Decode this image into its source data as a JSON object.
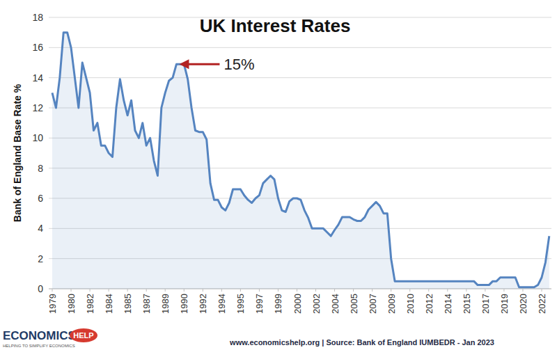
{
  "chart_data": {
    "type": "line",
    "title": "UK Interest Rates",
    "y_label": "Bank of England Base Rate %",
    "annotations": [
      {
        "text": "15%"
      }
    ],
    "categories": [
      "1979",
      null,
      null,
      null,
      null,
      "1980",
      null,
      null,
      null,
      null,
      "1982",
      null,
      null,
      null,
      null,
      "1984",
      null,
      null,
      null,
      null,
      "1985",
      null,
      null,
      null,
      null,
      "1987",
      null,
      null,
      null,
      null,
      "1989",
      null,
      null,
      null,
      null,
      "1990",
      null,
      null,
      null,
      null,
      "1992",
      null,
      null,
      null,
      null,
      "1994",
      null,
      null,
      null,
      null,
      "1995",
      null,
      null,
      null,
      null,
      "1997",
      null,
      null,
      null,
      null,
      "1999",
      null,
      null,
      null,
      null,
      "2000",
      null,
      null,
      null,
      null,
      "2002",
      null,
      null,
      null,
      null,
      "2004",
      null,
      null,
      null,
      null,
      "2005",
      null,
      null,
      null,
      null,
      "2007",
      null,
      null,
      null,
      null,
      "2009",
      null,
      null,
      null,
      null,
      "2010",
      null,
      null,
      null,
      null,
      "2012",
      null,
      null,
      null,
      null,
      "2014",
      null,
      null,
      null,
      null,
      "2015",
      null,
      null,
      null,
      null,
      "2017",
      null,
      null,
      null,
      null,
      "2019",
      null,
      null,
      null,
      null,
      "2020",
      null,
      null,
      null,
      null,
      "2022",
      null,
      null
    ],
    "values": [
      13,
      12,
      14,
      17,
      17,
      16,
      14,
      12,
      15,
      14,
      13,
      10.5,
      11,
      9.5,
      9.5,
      9,
      8.75,
      12,
      13.9,
      12.5,
      11.5,
      12.5,
      10.5,
      10,
      11,
      9.5,
      10,
      8.5,
      7.5,
      12,
      13,
      13.8,
      14,
      14.9,
      14.9,
      14.9,
      13.9,
      12,
      10.5,
      10.4,
      10.4,
      9.9,
      7,
      5.9,
      5.9,
      5.4,
      5.2,
      5.7,
      6.6,
      6.6,
      6.6,
      6.2,
      5.9,
      5.7,
      6,
      6.2,
      7,
      7.25,
      7.5,
      7.25,
      6,
      5.2,
      5.1,
      5.8,
      6,
      6,
      5.9,
      5.2,
      4.7,
      4,
      4,
      4,
      4,
      3.75,
      3.5,
      3.9,
      4.25,
      4.75,
      4.75,
      4.75,
      4.6,
      4.5,
      4.5,
      4.75,
      5.25,
      5.5,
      5.75,
      5.5,
      5,
      5,
      2,
      0.5,
      0.5,
      0.5,
      0.5,
      0.5,
      0.5,
      0.5,
      0.5,
      0.5,
      0.5,
      0.5,
      0.5,
      0.5,
      0.5,
      0.5,
      0.5,
      0.5,
      0.5,
      0.5,
      0.5,
      0.5,
      0.5,
      0.25,
      0.25,
      0.25,
      0.25,
      0.5,
      0.5,
      0.75,
      0.75,
      0.75,
      0.75,
      0.75,
      0.1,
      0.1,
      0.1,
      0.1,
      0.1,
      0.25,
      0.75,
      1.75,
      3.5
    ],
    "color": "#5584c0",
    "ylim": [
      0,
      18
    ],
    "yticks": [
      0,
      2,
      4,
      6,
      8,
      10,
      12,
      14,
      16,
      18
    ],
    "grid": true
  },
  "footer": {
    "source": "www.economicshelp.org | Source: Bank of England IUMBEDR - Jan 2023",
    "logo": "ECONOMICS",
    "logo_badge": "HELP",
    "tagline": "HELPING TO SIMPLIFY ECONOMICS"
  }
}
